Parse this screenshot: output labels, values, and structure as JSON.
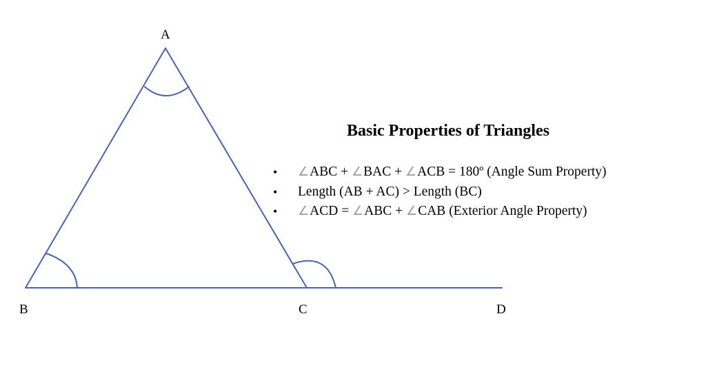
{
  "diagram": {
    "vertex_labels": {
      "a": "A",
      "b": "B",
      "c": "C",
      "d": "D"
    },
    "line_color": "#4a62ad"
  },
  "panel": {
    "title": "Basic Properties of Triangles",
    "bullet": "•",
    "angle_symbol": "∠",
    "properties": [
      {
        "angle1": "ABC",
        "op1": " + ",
        "angle2": "BAC",
        "op2": " + ",
        "angle3": "ACB",
        "rest": " = 180º (Angle Sum Property)"
      },
      {
        "text": "Length (AB + AC) > Length (BC)"
      },
      {
        "angle1": "ACD",
        "op1": " = ",
        "angle2": "ABC",
        "op2": " + ",
        "angle3": "CAB",
        "rest": " (Exterior Angle Property)"
      }
    ]
  }
}
